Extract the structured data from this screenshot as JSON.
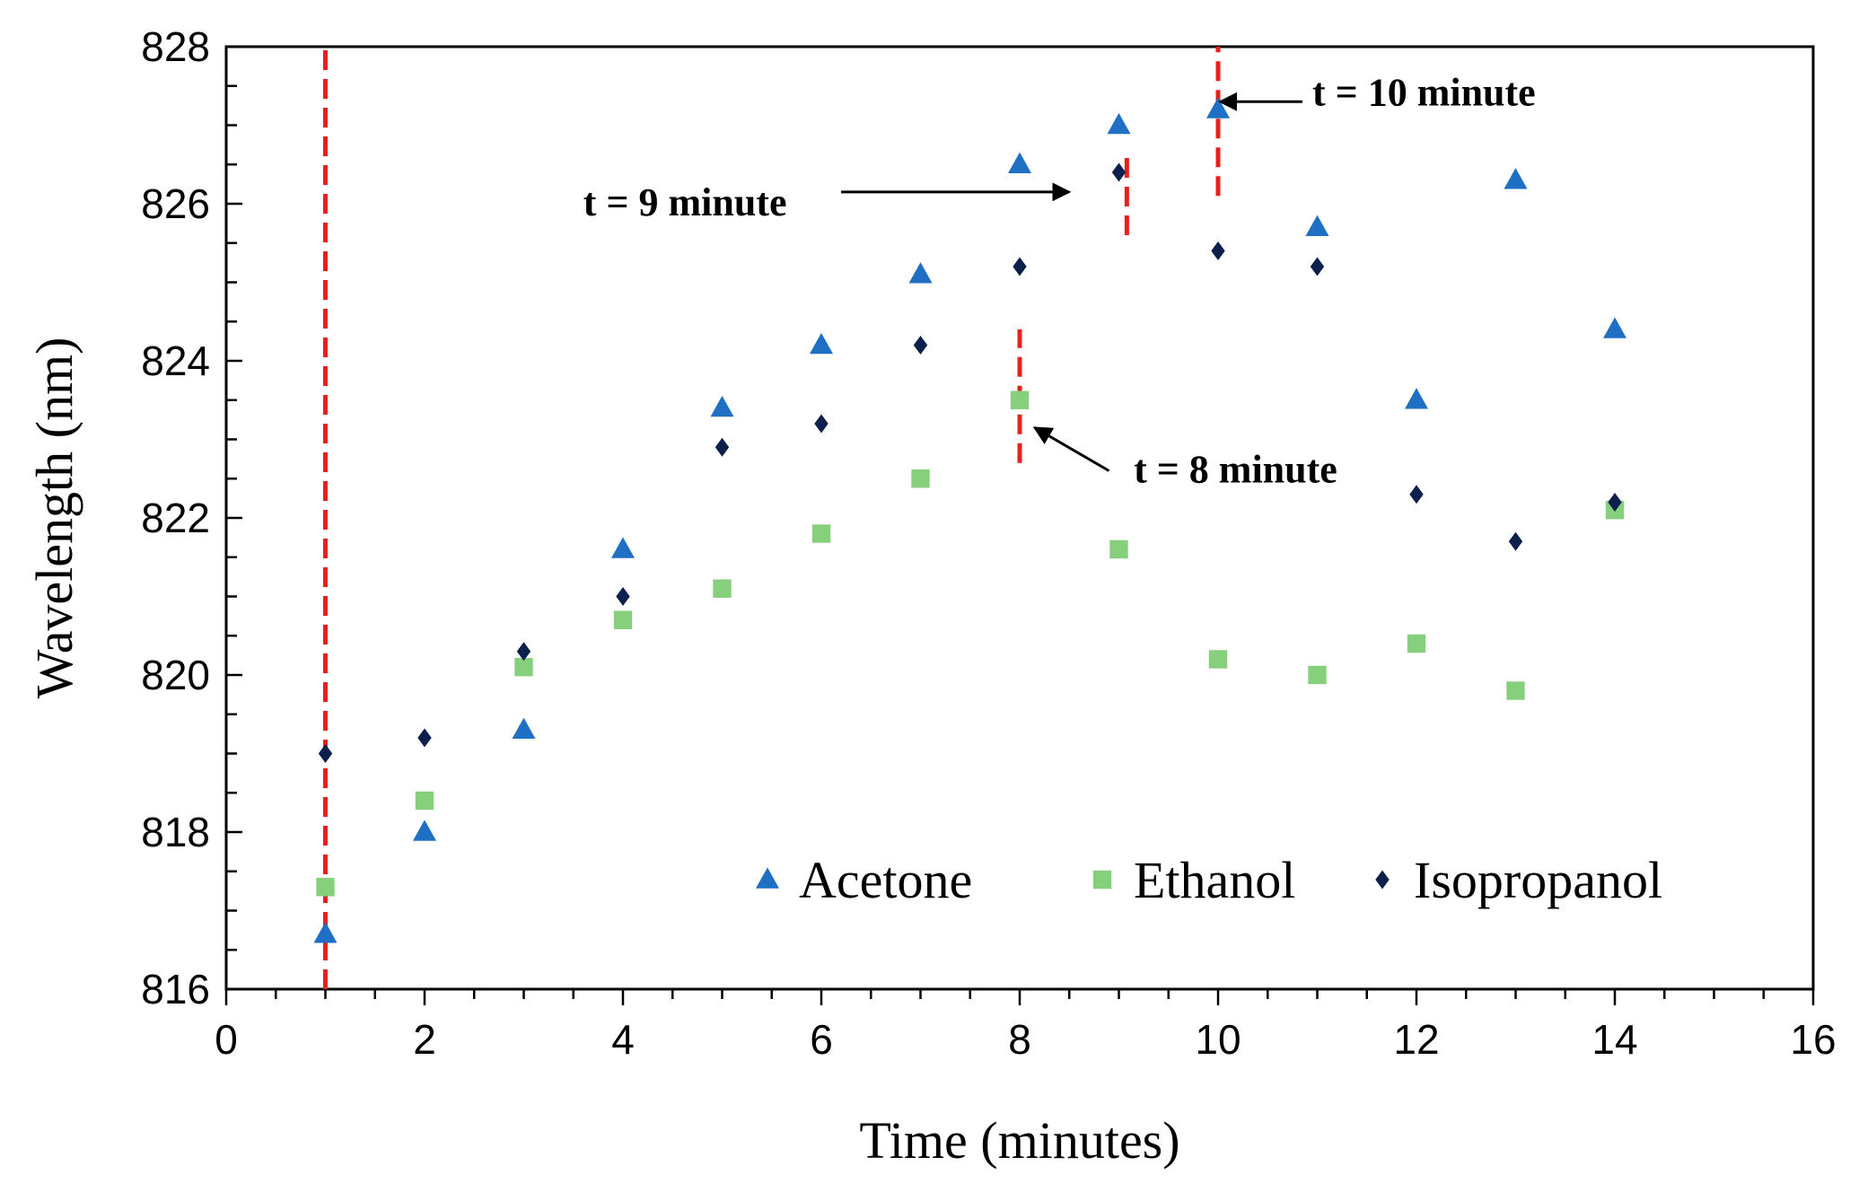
{
  "chart_data": {
    "type": "scatter",
    "title": "",
    "xlabel": "Time (minutes)",
    "ylabel": "Wavelength (nm)",
    "xlim": [
      0,
      16
    ],
    "ylim": [
      816,
      828
    ],
    "xticks": [
      0,
      2,
      4,
      6,
      8,
      10,
      12,
      14,
      16
    ],
    "yticks": [
      816,
      818,
      820,
      822,
      824,
      826,
      828
    ],
    "x_minor_step": 0.5,
    "y_minor_step": 0.5,
    "grid": false,
    "legend_position": "bottom-right",
    "series": [
      {
        "name": "Acetone",
        "marker": "triangle",
        "color": "#1f6fc5",
        "x": [
          1,
          2,
          3,
          4,
          5,
          6,
          7,
          8,
          9,
          10,
          11,
          12,
          13,
          14
        ],
        "values": [
          816.7,
          818.0,
          819.3,
          821.6,
          823.4,
          824.2,
          825.1,
          826.5,
          827.0,
          827.2,
          825.7,
          823.5,
          826.3,
          824.4
        ]
      },
      {
        "name": "Ethanol",
        "marker": "square",
        "color": "#86cf7c",
        "x": [
          1,
          2,
          3,
          4,
          5,
          6,
          7,
          8,
          9,
          10,
          11,
          12,
          13,
          14
        ],
        "values": [
          817.3,
          818.4,
          820.1,
          820.7,
          821.1,
          821.8,
          822.5,
          823.5,
          821.6,
          820.2,
          820.0,
          820.4,
          819.8,
          822.1
        ]
      },
      {
        "name": "Isopropanol",
        "marker": "diamond",
        "color": "#0d1f4d",
        "x": [
          1,
          2,
          3,
          4,
          5,
          6,
          7,
          8,
          9,
          10,
          11,
          12,
          13,
          14
        ],
        "values": [
          819.0,
          819.2,
          820.3,
          821.0,
          822.9,
          823.2,
          824.2,
          825.2,
          826.4,
          825.4,
          825.2,
          822.3,
          821.7,
          822.2
        ]
      }
    ],
    "reference_lines": [
      {
        "x": 1,
        "y_from": 816,
        "y_to": 828,
        "color": "#e8201c",
        "style": "dashed"
      },
      {
        "x": 8,
        "y_from": 822.7,
        "y_to": 824.4,
        "color": "#e8201c",
        "style": "dashed"
      },
      {
        "x": 9.08,
        "y_from": 825.6,
        "y_to": 826.6,
        "color": "#e8201c",
        "style": "dashed"
      },
      {
        "x": 10,
        "y_from": 826.1,
        "y_to": 828,
        "color": "#e8201c",
        "style": "dashed"
      }
    ],
    "annotations": [
      {
        "text": "t = 10 minute",
        "text_x": 10.95,
        "text_y": 827.25,
        "arrow_from": [
          10.85,
          827.3
        ],
        "arrow_to": [
          10.02,
          827.3
        ]
      },
      {
        "text": "t = 9 minute",
        "text_x": 3.6,
        "text_y": 825.85,
        "arrow_from": [
          6.2,
          826.15
        ],
        "arrow_to": [
          8.5,
          826.15
        ]
      },
      {
        "text": "t = 8 minute",
        "text_x": 9.15,
        "text_y": 822.45,
        "arrow_from": [
          8.9,
          822.6
        ],
        "arrow_to": [
          8.15,
          823.15
        ]
      }
    ]
  }
}
